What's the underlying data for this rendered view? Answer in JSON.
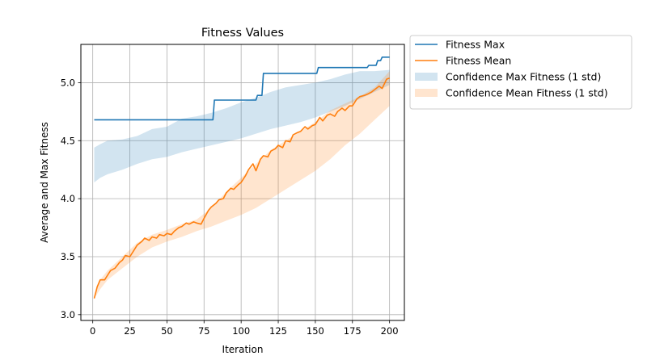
{
  "chart_data": {
    "type": "line",
    "title": "Fitness Values",
    "xlabel": "Iteration",
    "ylabel": "Average and Max Fitness",
    "xlim": [
      -8,
      210
    ],
    "ylim": [
      2.95,
      5.33
    ],
    "xticks": [
      "0",
      "25",
      "50",
      "75",
      "100",
      "125",
      "150",
      "175",
      "200"
    ],
    "xtick_values": [
      0,
      25,
      50,
      75,
      100,
      125,
      150,
      175,
      200
    ],
    "yticks": [
      "3.0",
      "3.5",
      "4.0",
      "4.5",
      "5.0"
    ],
    "ytick_values": [
      3.0,
      3.5,
      4.0,
      4.5,
      5.0
    ],
    "grid": true,
    "legend_position": "outside-top-right",
    "legend": [
      {
        "label": "Fitness Max",
        "kind": "line",
        "color": "#1f77b4"
      },
      {
        "label": "Fitness Mean",
        "kind": "line",
        "color": "#ff7f0e"
      },
      {
        "label": "Confidence Max Fitness (1 std)",
        "kind": "band",
        "color": "#1f77b4"
      },
      {
        "label": "Confidence Mean Fitness (1 std)",
        "kind": "band",
        "color": "#ff7f0e"
      }
    ],
    "series": [
      {
        "name": "Fitness Max",
        "color": "#1f77b4",
        "x": [
          1,
          81,
          82,
          110,
          111,
          114,
          115,
          151,
          152,
          185,
          186,
          191,
          192,
          194,
          195,
          200
        ],
        "y": [
          4.68,
          4.68,
          4.85,
          4.85,
          4.89,
          4.89,
          5.08,
          5.08,
          5.13,
          5.13,
          5.15,
          5.15,
          5.19,
          5.19,
          5.22,
          5.22
        ]
      },
      {
        "name": "Fitness Mean",
        "color": "#ff7f0e",
        "x": [
          1,
          3,
          5,
          8,
          10,
          12,
          15,
          18,
          20,
          22,
          25,
          28,
          30,
          33,
          35,
          38,
          40,
          43,
          45,
          48,
          50,
          53,
          55,
          58,
          60,
          63,
          65,
          68,
          70,
          73,
          75,
          78,
          80,
          83,
          85,
          88,
          90,
          93,
          95,
          98,
          100,
          103,
          105,
          108,
          110,
          113,
          115,
          118,
          120,
          123,
          125,
          128,
          130,
          133,
          135,
          138,
          140,
          143,
          145,
          148,
          150,
          153,
          155,
          158,
          160,
          163,
          165,
          168,
          170,
          173,
          175,
          178,
          180,
          183,
          185,
          188,
          190,
          193,
          195,
          198,
          200
        ],
        "y": [
          3.14,
          3.24,
          3.3,
          3.3,
          3.34,
          3.38,
          3.4,
          3.45,
          3.47,
          3.51,
          3.5,
          3.56,
          3.6,
          3.63,
          3.66,
          3.64,
          3.67,
          3.66,
          3.69,
          3.68,
          3.7,
          3.69,
          3.72,
          3.75,
          3.76,
          3.79,
          3.78,
          3.8,
          3.79,
          3.78,
          3.83,
          3.9,
          3.93,
          3.96,
          3.99,
          4.0,
          4.05,
          4.09,
          4.08,
          4.12,
          4.14,
          4.2,
          4.25,
          4.3,
          4.24,
          4.34,
          4.37,
          4.36,
          4.41,
          4.43,
          4.46,
          4.44,
          4.5,
          4.49,
          4.55,
          4.57,
          4.58,
          4.62,
          4.6,
          4.63,
          4.64,
          4.7,
          4.67,
          4.72,
          4.73,
          4.71,
          4.75,
          4.78,
          4.76,
          4.8,
          4.8,
          4.86,
          4.88,
          4.89,
          4.9,
          4.92,
          4.94,
          4.97,
          4.95,
          5.03,
          5.04
        ]
      }
    ],
    "bands": [
      {
        "name": "Confidence Max Fitness (1 std)",
        "color": "#1f77b4",
        "x": [
          1,
          5,
          10,
          20,
          30,
          40,
          50,
          60,
          70,
          80,
          90,
          100,
          110,
          120,
          130,
          140,
          150,
          160,
          170,
          180,
          190,
          200
        ],
        "upper": [
          4.44,
          4.47,
          4.5,
          4.51,
          4.54,
          4.6,
          4.62,
          4.69,
          4.71,
          4.74,
          4.78,
          4.83,
          4.87,
          4.92,
          4.96,
          4.98,
          5.0,
          5.03,
          5.07,
          5.1,
          5.1,
          5.11
        ],
        "lower": [
          4.14,
          4.18,
          4.21,
          4.25,
          4.3,
          4.34,
          4.36,
          4.4,
          4.43,
          4.46,
          4.49,
          4.52,
          4.56,
          4.6,
          4.63,
          4.66,
          4.7,
          4.75,
          4.8,
          4.86,
          4.92,
          4.98
        ]
      },
      {
        "name": "Confidence Mean Fitness (1 std)",
        "color": "#ff7f0e",
        "x": [
          1,
          5,
          10,
          20,
          30,
          40,
          50,
          60,
          70,
          80,
          90,
          100,
          110,
          120,
          130,
          140,
          150,
          160,
          170,
          180,
          190,
          200
        ],
        "upper": [
          3.14,
          3.3,
          3.38,
          3.5,
          3.62,
          3.69,
          3.73,
          3.78,
          3.82,
          3.92,
          4.06,
          4.18,
          4.3,
          4.42,
          4.5,
          4.58,
          4.66,
          4.76,
          4.82,
          4.88,
          4.96,
          5.1
        ],
        "lower": [
          3.14,
          3.22,
          3.3,
          3.4,
          3.5,
          3.58,
          3.63,
          3.67,
          3.72,
          3.76,
          3.81,
          3.86,
          3.92,
          4.0,
          4.08,
          4.16,
          4.24,
          4.34,
          4.46,
          4.56,
          4.68,
          4.8
        ]
      }
    ]
  }
}
